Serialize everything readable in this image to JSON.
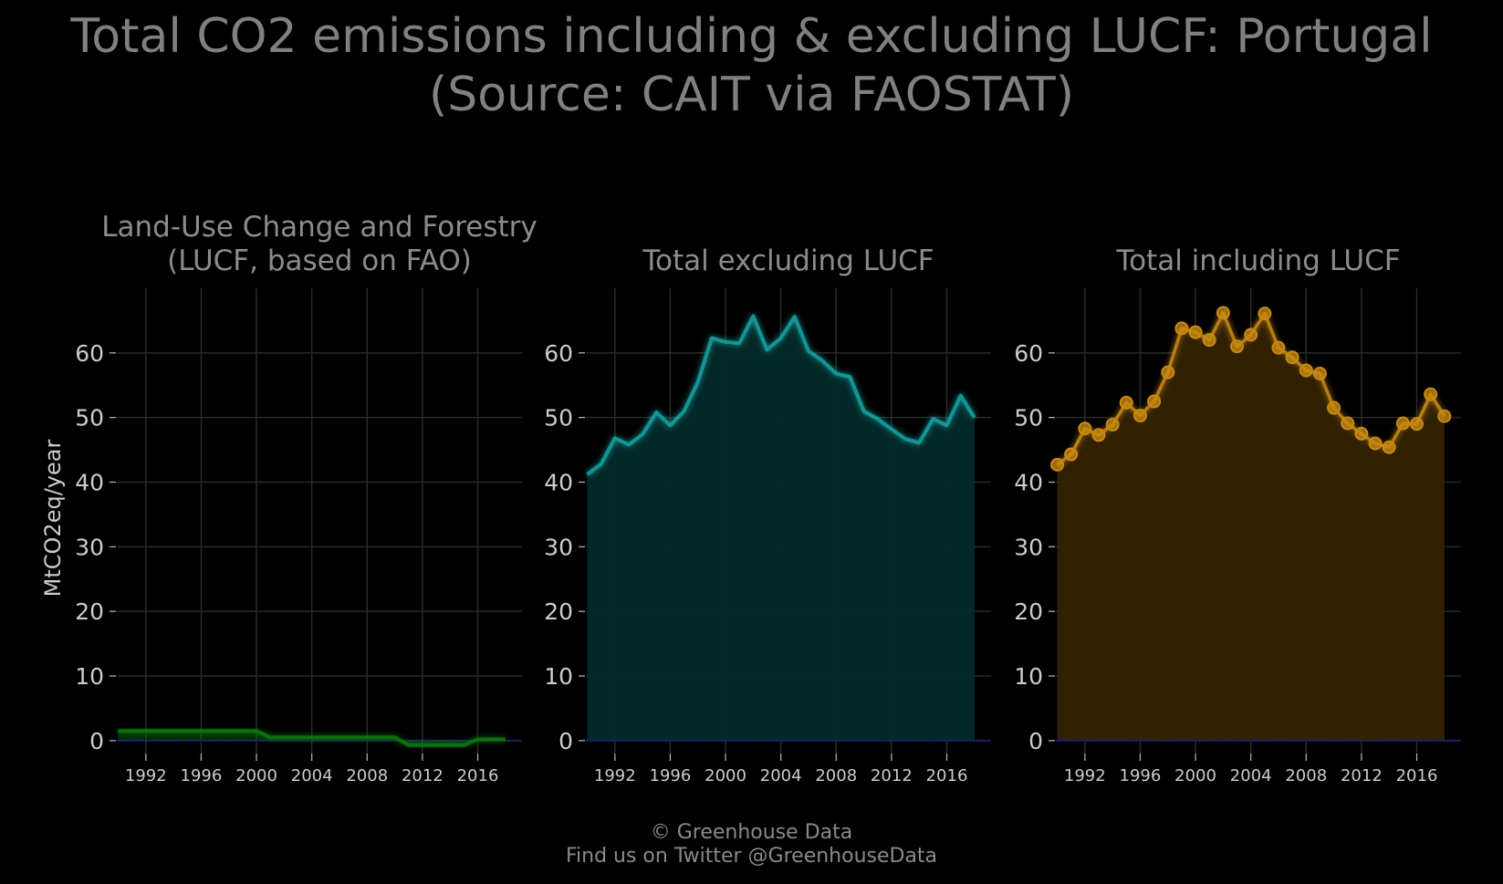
{
  "title": {
    "line1": "Total CO2 emissions including & excluding LUCF: Portugal",
    "line2": "(Source: CAIT via FAOSTAT)"
  },
  "ylabel": "MtCO2eq/year",
  "footer": {
    "line1": "© Greenhouse Data",
    "line2": "Find us on Twitter @GreenhouseData"
  },
  "colors": {
    "background": "#000000",
    "grid": "#2a2a2a",
    "text": "#8c8c8c",
    "tick_text": "#cccccc",
    "zero_line": "#1a1aa0",
    "lucf": "#0e7a0e",
    "excl": "#13a3a3",
    "excl_fill": "#042a2a",
    "incl": "#c98a12",
    "incl_fill": "#352203"
  },
  "chart_data": [
    {
      "type": "area",
      "title_lines": [
        "Land-Use Change and Forestry",
        "(LUCF, based on FAO)"
      ],
      "ylim": [
        -2,
        70
      ],
      "yticks": [
        0,
        10,
        20,
        30,
        40,
        50,
        60
      ],
      "xlim": [
        1989.9,
        2019.2
      ],
      "xticks": [
        1992,
        1996,
        2000,
        2004,
        2008,
        2012,
        2016
      ],
      "grid": true,
      "x": [
        1990,
        1991,
        1992,
        1993,
        1994,
        1995,
        1996,
        1997,
        1998,
        1999,
        2000,
        2001,
        2002,
        2003,
        2004,
        2005,
        2006,
        2007,
        2008,
        2009,
        2010,
        2011,
        2012,
        2013,
        2014,
        2015,
        2016,
        2017,
        2018
      ],
      "values": [
        1.5,
        1.5,
        1.5,
        1.5,
        1.5,
        1.5,
        1.5,
        1.5,
        1.5,
        1.5,
        1.5,
        0.5,
        0.5,
        0.5,
        0.5,
        0.5,
        0.5,
        0.5,
        0.5,
        0.5,
        0.5,
        -0.7,
        -0.7,
        -0.7,
        -0.7,
        -0.7,
        0.2,
        0.2,
        0.2
      ],
      "markers": false,
      "color_key": "lucf"
    },
    {
      "type": "area",
      "title_lines": [
        "Total excluding LUCF"
      ],
      "ylim": [
        -2,
        70
      ],
      "yticks": [
        0,
        10,
        20,
        30,
        40,
        50,
        60
      ],
      "xlim": [
        1989.9,
        2019.2
      ],
      "xticks": [
        1992,
        1996,
        2000,
        2004,
        2008,
        2012,
        2016
      ],
      "grid": true,
      "x": [
        1990,
        1991,
        1992,
        1993,
        1994,
        1995,
        1996,
        1997,
        1998,
        1999,
        2000,
        2001,
        2002,
        2003,
        2004,
        2005,
        2006,
        2007,
        2008,
        2009,
        2010,
        2011,
        2012,
        2013,
        2014,
        2015,
        2016,
        2017,
        2018
      ],
      "values": [
        41.2,
        42.8,
        46.8,
        45.8,
        47.4,
        50.8,
        48.8,
        51.0,
        55.5,
        62.3,
        61.7,
        61.5,
        65.7,
        60.5,
        62.3,
        65.6,
        60.3,
        58.8,
        56.8,
        56.3,
        51.0,
        49.8,
        48.2,
        46.7,
        46.1,
        49.8,
        48.8,
        53.4,
        50.0
      ],
      "markers": false,
      "color_key": "excl",
      "fill_key": "excl_fill"
    },
    {
      "type": "area",
      "title_lines": [
        "Total including LUCF"
      ],
      "ylim": [
        -2,
        70
      ],
      "yticks": [
        0,
        10,
        20,
        30,
        40,
        50,
        60
      ],
      "xlim": [
        1989.9,
        2019.2
      ],
      "xticks": [
        1992,
        1996,
        2000,
        2004,
        2008,
        2012,
        2016
      ],
      "grid": true,
      "x": [
        1990,
        1991,
        1992,
        1993,
        1994,
        1995,
        1996,
        1997,
        1998,
        1999,
        2000,
        2001,
        2002,
        2003,
        2004,
        2005,
        2006,
        2007,
        2008,
        2009,
        2010,
        2011,
        2012,
        2013,
        2014,
        2015,
        2016,
        2017,
        2018
      ],
      "values": [
        42.7,
        44.3,
        48.3,
        47.3,
        48.9,
        52.3,
        50.3,
        52.5,
        57.0,
        63.8,
        63.2,
        62.0,
        66.2,
        61.0,
        62.8,
        66.1,
        60.8,
        59.3,
        57.3,
        56.8,
        51.5,
        49.1,
        47.5,
        46.0,
        45.4,
        49.1,
        49.0,
        53.6,
        50.2
      ],
      "markers": true,
      "color_key": "incl",
      "fill_key": "incl_fill"
    }
  ]
}
